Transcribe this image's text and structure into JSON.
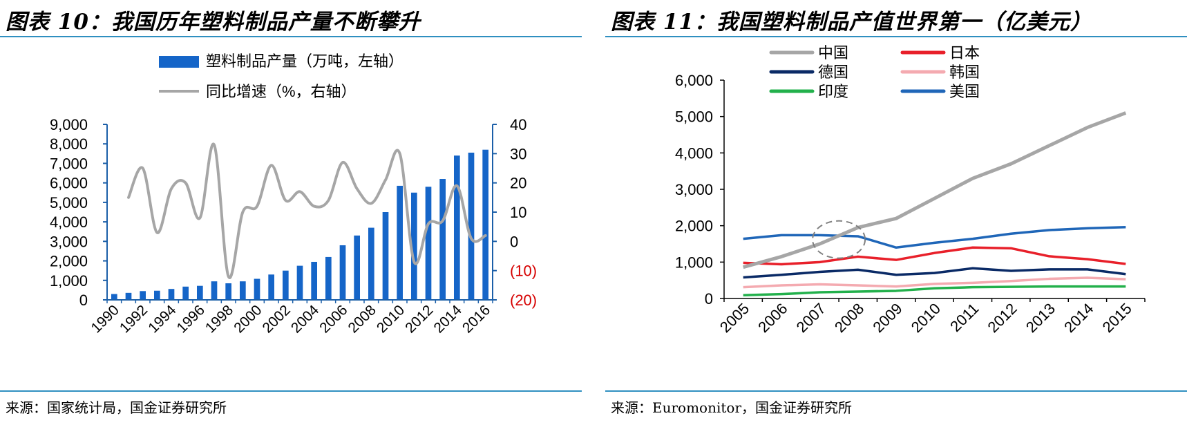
{
  "left": {
    "title": "图表 10：我国历年塑料制品产量不断攀升",
    "source": "来源：国家统计局，国金证券研究所",
    "chart_data": {
      "type": "bar",
      "categories": [
        "1990",
        "1991",
        "1992",
        "1993",
        "1994",
        "1995",
        "1996",
        "1997",
        "1998",
        "1999",
        "2000",
        "2001",
        "2002",
        "2003",
        "2004",
        "2005",
        "2006",
        "2007",
        "2008",
        "2009",
        "2010",
        "2011",
        "2012",
        "2013",
        "2014",
        "2015",
        "2016"
      ],
      "x_tick_labels": [
        "1990",
        "1992",
        "1994",
        "1996",
        "1998",
        "2000",
        "2002",
        "2004",
        "2006",
        "2008",
        "2010",
        "2012",
        "2014",
        "2016"
      ],
      "series": [
        {
          "name": "塑料制品产量（万吨，左轴）",
          "type": "bar",
          "axis": "left",
          "values": [
            300,
            360,
            450,
            470,
            560,
            680,
            720,
            950,
            850,
            950,
            1080,
            1300,
            1500,
            1750,
            1950,
            2200,
            2800,
            3300,
            3700,
            4500,
            5850,
            5500,
            5800,
            6200,
            7400,
            7550,
            7700
          ]
        },
        {
          "name": "同比增速（%，右轴）",
          "type": "line",
          "axis": "right",
          "values": [
            null,
            15,
            25,
            3,
            18,
            20,
            8,
            33,
            -12,
            10,
            12,
            26,
            14,
            17,
            12,
            14,
            27,
            18,
            13,
            21,
            30,
            -7,
            6,
            7,
            19,
            1,
            2
          ]
        }
      ],
      "left_axis": {
        "ylim": [
          0,
          9000
        ],
        "tick_labels": [
          "0",
          "1,000",
          "2,000",
          "3,000",
          "4,000",
          "5,000",
          "6,000",
          "7,000",
          "8,000",
          "9,000"
        ]
      },
      "right_axis": {
        "ylim": [
          -20,
          40
        ],
        "tick_labels": [
          "(20)",
          "(10)",
          "0",
          "10",
          "20",
          "30",
          "40"
        ]
      },
      "legend_position": "top",
      "colors": {
        "bar": "#1565c8",
        "line": "#a6a6a6",
        "axis": "#1b5fa8",
        "negative_tick": "#d60000"
      }
    }
  },
  "right": {
    "title": "图表 11：我国塑料制品产值世界第一（亿美元）",
    "source": "来源：Euromonitor，国金证券研究所",
    "chart_data": {
      "type": "line",
      "categories": [
        "2005",
        "2006",
        "2007",
        "2008",
        "2009",
        "2010",
        "2011",
        "2012",
        "2013",
        "2014",
        "2015"
      ],
      "series": [
        {
          "name": "中国",
          "color": "#a6a6a6",
          "values": [
            860,
            1150,
            1500,
            1950,
            2200,
            2750,
            3300,
            3700,
            4200,
            4700,
            5100
          ]
        },
        {
          "name": "日本",
          "color": "#e8202a",
          "values": [
            980,
            940,
            1000,
            1150,
            1060,
            1250,
            1400,
            1380,
            1160,
            1080,
            950
          ]
        },
        {
          "name": "德国",
          "color": "#0a2a66",
          "values": [
            580,
            650,
            730,
            790,
            650,
            700,
            830,
            760,
            800,
            800,
            670
          ]
        },
        {
          "name": "韩国",
          "color": "#f4aab0",
          "values": [
            310,
            360,
            390,
            360,
            330,
            400,
            430,
            480,
            540,
            570,
            530
          ]
        },
        {
          "name": "印度",
          "color": "#22b04b",
          "values": [
            90,
            120,
            170,
            190,
            210,
            280,
            310,
            320,
            330,
            330,
            330
          ]
        },
        {
          "name": "美国",
          "color": "#1f66b8",
          "values": [
            1640,
            1740,
            1740,
            1710,
            1400,
            1530,
            1640,
            1780,
            1880,
            1930,
            1960
          ]
        }
      ],
      "ylim": [
        0,
        6000
      ],
      "y_tick_labels": [
        "0",
        "1,000",
        "2,000",
        "3,000",
        "4,000",
        "5,000",
        "6,000"
      ],
      "annotation": {
        "type": "dashed-ellipse",
        "center_x": "2007.5",
        "center_y": 1620
      },
      "legend_position": "top"
    }
  }
}
